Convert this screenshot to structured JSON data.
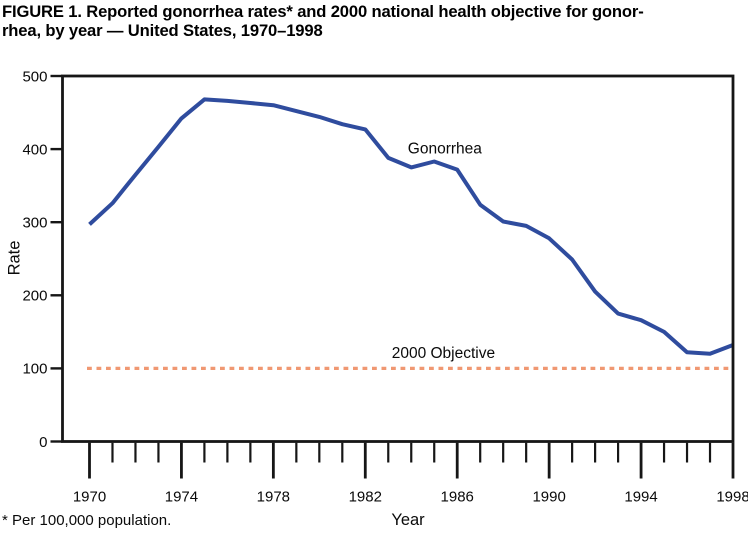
{
  "figure": {
    "title_line1": "FIGURE 1. Reported gonorrhea rates* and 2000 national health objective for gonor-",
    "title_line2": "rhea, by year — United States, 1970–1998",
    "footnote": "* Per 100,000 population."
  },
  "chart_data": {
    "type": "line",
    "title": "Reported gonorrhea rates and 2000 national health objective for gonorrhea, by year — United States, 1970–1998",
    "xlabel": "Year",
    "ylabel": "Rate",
    "ylim": [
      0,
      500
    ],
    "xlim": [
      1969,
      1998
    ],
    "y_ticks": [
      0,
      100,
      200,
      300,
      400,
      500
    ],
    "x_ticks_labeled": [
      1970,
      1974,
      1978,
      1982,
      1986,
      1990,
      1994,
      1998
    ],
    "grid": false,
    "legend_position": "inline-annotations",
    "series": [
      {
        "name": "Gonorrhea",
        "style": "solid",
        "color": "#2F4C9E",
        "x": [
          1970,
          1971,
          1972,
          1973,
          1974,
          1975,
          1976,
          1977,
          1978,
          1979,
          1980,
          1981,
          1982,
          1983,
          1984,
          1985,
          1986,
          1987,
          1988,
          1989,
          1990,
          1991,
          1992,
          1993,
          1994,
          1995,
          1996,
          1997,
          1998
        ],
        "values": [
          297,
          326,
          365,
          403,
          442,
          468,
          466,
          463,
          460,
          452,
          444,
          434,
          427,
          388,
          375,
          383,
          372,
          324,
          301,
          295,
          278,
          249,
          205,
          175,
          166,
          150,
          122,
          120,
          132
        ]
      },
      {
        "name": "2000 Objective",
        "style": "dotted",
        "color": "#F09872",
        "x": [
          1970,
          1998
        ],
        "constant_value": 100
      }
    ],
    "annotations": [
      {
        "id": "gonorrhea-label",
        "text": "Gonorrhea",
        "year": 1983.85,
        "rate": 394,
        "anchor": "start"
      },
      {
        "id": "objective-label",
        "text": "2000 Objective",
        "year": 1983.15,
        "rate": 114,
        "anchor": "start"
      }
    ],
    "axis_color": "#161616",
    "text_color": "#0a0a0a"
  }
}
